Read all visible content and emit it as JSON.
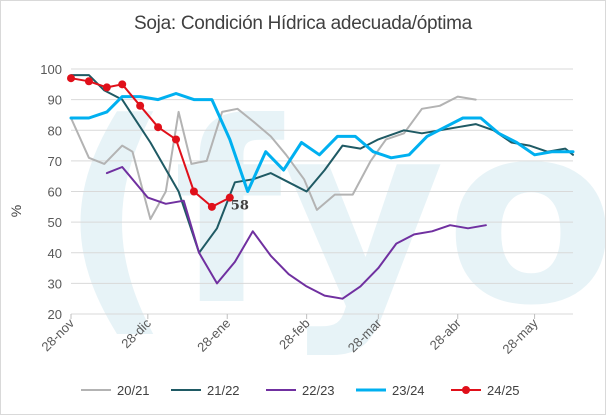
{
  "chart_data": {
    "type": "line",
    "title": "Soja: Condición Hídrica adecuada/óptima",
    "ylabel": "%",
    "xlabel": "",
    "ylim": [
      20,
      100
    ],
    "yticks": [
      20,
      30,
      40,
      50,
      60,
      70,
      80,
      90,
      100
    ],
    "x_axis": "date",
    "xlim": [
      "2024-11-28",
      "2025-06-12"
    ],
    "xtick_labels": [
      {
        "date": "2024-11-28",
        "label": "28-nov"
      },
      {
        "date": "2024-12-28",
        "label": "28-dic"
      },
      {
        "date": "2025-01-28",
        "label": "28-ene"
      },
      {
        "date": "2025-02-28",
        "label": "28-feb"
      },
      {
        "date": "2025-03-28",
        "label": "28-mar"
      },
      {
        "date": "2025-04-28",
        "label": "28-abr"
      },
      {
        "date": "2025-05-28",
        "label": "28-may"
      }
    ],
    "grid": true,
    "legend_position": "bottom",
    "series": [
      {
        "name": "20/21",
        "color": "#b3b3b3",
        "markers": false,
        "points": [
          [
            "2024-11-28",
            84
          ],
          [
            "2024-12-05",
            71
          ],
          [
            "2024-12-11",
            69
          ],
          [
            "2024-12-18",
            75
          ],
          [
            "2024-12-22",
            73
          ],
          [
            "2024-12-29",
            51
          ],
          [
            "2025-01-04",
            60
          ],
          [
            "2025-01-09",
            86
          ],
          [
            "2025-01-14",
            69
          ],
          [
            "2025-01-20",
            70
          ],
          [
            "2025-01-26",
            86
          ],
          [
            "2025-02-01",
            87
          ],
          [
            "2025-02-07",
            83
          ],
          [
            "2025-02-14",
            78
          ],
          [
            "2025-02-20",
            72
          ],
          [
            "2025-02-27",
            64
          ],
          [
            "2025-03-04",
            54
          ],
          [
            "2025-03-11",
            59
          ],
          [
            "2025-03-18",
            59
          ],
          [
            "2025-03-25",
            70
          ],
          [
            "2025-03-31",
            77
          ],
          [
            "2025-04-07",
            79
          ],
          [
            "2025-04-14",
            87
          ],
          [
            "2025-04-21",
            88
          ],
          [
            "2025-04-28",
            91
          ],
          [
            "2025-05-05",
            90
          ]
        ]
      },
      {
        "name": "21/22",
        "color": "#1f5a64",
        "markers": false,
        "points": [
          [
            "2024-11-28",
            98
          ],
          [
            "2024-12-05",
            98
          ],
          [
            "2024-12-11",
            93
          ],
          [
            "2024-12-18",
            90
          ],
          [
            "2024-12-29",
            76
          ],
          [
            "2025-01-09",
            60
          ],
          [
            "2025-01-17",
            40
          ],
          [
            "2025-01-24",
            48
          ],
          [
            "2025-01-31",
            63
          ],
          [
            "2025-02-07",
            64
          ],
          [
            "2025-02-14",
            66
          ],
          [
            "2025-02-21",
            63
          ],
          [
            "2025-02-28",
            60
          ],
          [
            "2025-03-07",
            67
          ],
          [
            "2025-03-14",
            75
          ],
          [
            "2025-03-21",
            74
          ],
          [
            "2025-03-28",
            77
          ],
          [
            "2025-04-07",
            80
          ],
          [
            "2025-04-14",
            79
          ],
          [
            "2025-04-21",
            80
          ],
          [
            "2025-04-28",
            81
          ],
          [
            "2025-05-05",
            82
          ],
          [
            "2025-05-12",
            80
          ],
          [
            "2025-05-19",
            76
          ],
          [
            "2025-05-26",
            75
          ],
          [
            "2025-06-02",
            73
          ],
          [
            "2025-06-09",
            74
          ],
          [
            "2025-06-12",
            72
          ]
        ]
      },
      {
        "name": "22/23",
        "color": "#7030a0",
        "markers": false,
        "points": [
          [
            "2024-12-12",
            66
          ],
          [
            "2024-12-18",
            68
          ],
          [
            "2024-12-28",
            58
          ],
          [
            "2025-01-04",
            56
          ],
          [
            "2025-01-11",
            57
          ],
          [
            "2025-01-17",
            40
          ],
          [
            "2025-01-24",
            30
          ],
          [
            "2025-01-31",
            37
          ],
          [
            "2025-02-07",
            47
          ],
          [
            "2025-02-14",
            39
          ],
          [
            "2025-02-21",
            33
          ],
          [
            "2025-02-28",
            29
          ],
          [
            "2025-03-07",
            26
          ],
          [
            "2025-03-14",
            25
          ],
          [
            "2025-03-21",
            29
          ],
          [
            "2025-03-28",
            35
          ],
          [
            "2025-04-04",
            43
          ],
          [
            "2025-04-11",
            46
          ],
          [
            "2025-04-18",
            47
          ],
          [
            "2025-04-25",
            49
          ],
          [
            "2025-05-02",
            48
          ],
          [
            "2025-05-09",
            49
          ]
        ]
      },
      {
        "name": "23/24",
        "color": "#00b0f0",
        "markers": false,
        "points": [
          [
            "2024-11-28",
            84
          ],
          [
            "2024-12-05",
            84
          ],
          [
            "2024-12-12",
            86
          ],
          [
            "2024-12-18",
            91
          ],
          [
            "2024-12-25",
            91
          ],
          [
            "2025-01-01",
            90
          ],
          [
            "2025-01-08",
            92
          ],
          [
            "2025-01-15",
            90
          ],
          [
            "2025-01-22",
            90
          ],
          [
            "2025-01-29",
            77
          ],
          [
            "2025-02-05",
            60
          ],
          [
            "2025-02-12",
            73
          ],
          [
            "2025-02-19",
            67
          ],
          [
            "2025-02-26",
            76
          ],
          [
            "2025-03-05",
            72
          ],
          [
            "2025-03-12",
            78
          ],
          [
            "2025-03-19",
            78
          ],
          [
            "2025-03-26",
            73
          ],
          [
            "2025-04-02",
            71
          ],
          [
            "2025-04-09",
            72
          ],
          [
            "2025-04-16",
            78
          ],
          [
            "2025-04-23",
            81
          ],
          [
            "2025-04-30",
            84
          ],
          [
            "2025-05-07",
            84
          ],
          [
            "2025-05-14",
            79
          ],
          [
            "2025-05-21",
            76
          ],
          [
            "2025-05-28",
            72
          ],
          [
            "2025-06-04",
            73
          ],
          [
            "2025-06-12",
            73
          ]
        ]
      },
      {
        "name": "24/25",
        "color": "#e0101a",
        "markers": true,
        "points": [
          [
            "2024-11-28",
            97
          ],
          [
            "2024-12-05",
            96
          ],
          [
            "2024-12-12",
            94
          ],
          [
            "2024-12-18",
            95
          ],
          [
            "2024-12-25",
            88
          ],
          [
            "2025-01-01",
            81
          ],
          [
            "2025-01-08",
            77
          ],
          [
            "2025-01-15",
            60
          ],
          [
            "2025-01-22",
            55
          ],
          [
            "2025-01-29",
            58
          ]
        ]
      }
    ],
    "annotations": [
      {
        "text": "58",
        "series": "24/25",
        "date": "2025-01-29",
        "value": 58
      }
    ],
    "watermark": "(fyo"
  }
}
